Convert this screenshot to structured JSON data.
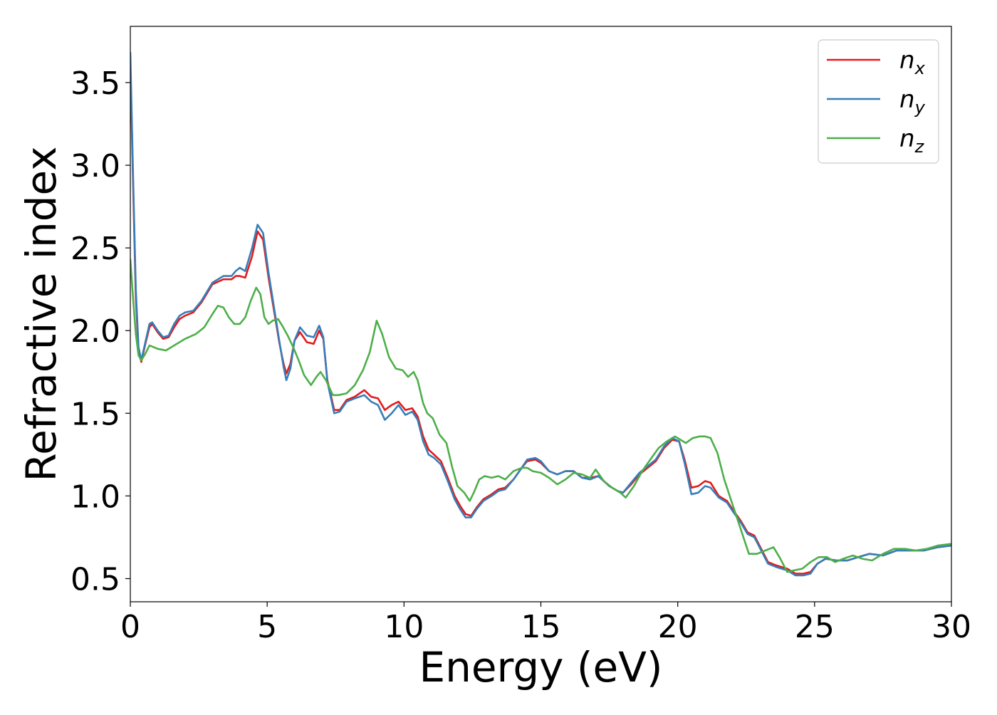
{
  "chart_data": {
    "type": "line",
    "xlabel": "Energy (eV)",
    "ylabel": "Refractive index",
    "xlim": [
      0,
      30
    ],
    "ylim": [
      0.36,
      3.84
    ],
    "xticks": [
      0,
      5,
      10,
      15,
      20,
      25,
      30
    ],
    "yticks": [
      0.5,
      1.0,
      1.5,
      2.0,
      2.5,
      3.0,
      3.5
    ],
    "xtick_labels": [
      "0",
      "5",
      "10",
      "15",
      "20",
      "25",
      "30"
    ],
    "ytick_labels": [
      "0.5",
      "1.0",
      "1.5",
      "2.0",
      "2.5",
      "3.0",
      "3.5"
    ],
    "grid": false,
    "legend_position": "top-right",
    "series": [
      {
        "name": "n",
        "subscript": "x",
        "color": "#e41a1c",
        "x": [
          0,
          0.1,
          0.2,
          0.3,
          0.4,
          0.55,
          0.7,
          0.8,
          1.0,
          1.2,
          1.4,
          1.6,
          1.8,
          2.0,
          2.3,
          2.6,
          3.0,
          3.4,
          3.7,
          3.85,
          4.0,
          4.2,
          4.45,
          4.65,
          4.85,
          5.05,
          5.25,
          5.45,
          5.6,
          5.7,
          5.85,
          6.0,
          6.2,
          6.45,
          6.7,
          6.9,
          7.05,
          7.2,
          7.45,
          7.65,
          7.9,
          8.2,
          8.55,
          8.8,
          9.05,
          9.3,
          9.55,
          9.8,
          10.05,
          10.3,
          10.5,
          10.7,
          10.9,
          11.1,
          11.35,
          11.6,
          11.85,
          12.05,
          12.25,
          12.45,
          12.65,
          12.9,
          13.2,
          13.45,
          13.7,
          14.0,
          14.3,
          14.5,
          14.8,
          15.0,
          15.3,
          15.6,
          15.9,
          16.2,
          16.5,
          16.8,
          17.1,
          17.5,
          17.8,
          18.0,
          18.3,
          18.6,
          18.9,
          19.2,
          19.5,
          19.8,
          20.05,
          20.25,
          20.5,
          20.75,
          21.0,
          21.2,
          21.5,
          21.8,
          22.0,
          22.3,
          22.55,
          22.8,
          23.05,
          23.3,
          23.6,
          24.0,
          24.3,
          24.6,
          24.85,
          25.1,
          25.4,
          25.8,
          26.2,
          26.6,
          27.0,
          27.5,
          28.0,
          28.5,
          29.0,
          29.5,
          30.0
        ],
        "y": [
          3.62,
          2.9,
          2.2,
          1.88,
          1.81,
          1.92,
          2.02,
          2.04,
          1.99,
          1.95,
          1.96,
          2.02,
          2.07,
          2.09,
          2.11,
          2.17,
          2.28,
          2.31,
          2.31,
          2.33,
          2.33,
          2.32,
          2.45,
          2.6,
          2.55,
          2.32,
          2.12,
          1.92,
          1.8,
          1.74,
          1.8,
          1.94,
          1.99,
          1.93,
          1.92,
          2.0,
          1.95,
          1.7,
          1.52,
          1.52,
          1.58,
          1.6,
          1.64,
          1.6,
          1.59,
          1.52,
          1.55,
          1.57,
          1.52,
          1.53,
          1.48,
          1.36,
          1.28,
          1.25,
          1.21,
          1.11,
          1.0,
          0.94,
          0.89,
          0.88,
          0.93,
          0.98,
          1.01,
          1.04,
          1.05,
          1.1,
          1.17,
          1.21,
          1.22,
          1.2,
          1.15,
          1.13,
          1.15,
          1.15,
          1.11,
          1.11,
          1.12,
          1.06,
          1.03,
          1.02,
          1.07,
          1.13,
          1.17,
          1.21,
          1.29,
          1.34,
          1.33,
          1.22,
          1.05,
          1.06,
          1.09,
          1.08,
          1.0,
          0.97,
          0.92,
          0.85,
          0.78,
          0.76,
          0.68,
          0.6,
          0.58,
          0.56,
          0.53,
          0.53,
          0.54,
          0.59,
          0.62,
          0.61,
          0.61,
          0.63,
          0.65,
          0.64,
          0.67,
          0.67,
          0.67,
          0.69,
          0.7
        ]
      },
      {
        "name": "n",
        "subscript": "y",
        "color": "#377eb8",
        "x": [
          0,
          0.1,
          0.2,
          0.3,
          0.4,
          0.55,
          0.7,
          0.8,
          1.0,
          1.2,
          1.4,
          1.6,
          1.8,
          2.0,
          2.3,
          2.6,
          3.0,
          3.4,
          3.7,
          3.85,
          4.0,
          4.2,
          4.45,
          4.65,
          4.85,
          5.05,
          5.25,
          5.45,
          5.6,
          5.7,
          5.85,
          6.0,
          6.2,
          6.45,
          6.7,
          6.9,
          7.05,
          7.2,
          7.45,
          7.65,
          7.9,
          8.2,
          8.55,
          8.8,
          9.05,
          9.3,
          9.55,
          9.8,
          10.05,
          10.3,
          10.5,
          10.7,
          10.9,
          11.1,
          11.35,
          11.6,
          11.85,
          12.05,
          12.25,
          12.45,
          12.65,
          12.9,
          13.2,
          13.45,
          13.7,
          14.0,
          14.3,
          14.5,
          14.8,
          15.0,
          15.3,
          15.6,
          15.9,
          16.2,
          16.5,
          16.8,
          17.1,
          17.5,
          17.8,
          18.0,
          18.3,
          18.6,
          18.9,
          19.2,
          19.5,
          19.8,
          20.05,
          20.25,
          20.5,
          20.75,
          21.0,
          21.2,
          21.5,
          21.8,
          22.0,
          22.3,
          22.55,
          22.8,
          23.05,
          23.3,
          23.6,
          24.0,
          24.3,
          24.6,
          24.85,
          25.1,
          25.4,
          25.8,
          26.2,
          26.6,
          27.0,
          27.5,
          28.0,
          28.5,
          29.0,
          29.5,
          30.0
        ],
        "y": [
          3.68,
          2.95,
          2.25,
          1.9,
          1.82,
          1.93,
          2.04,
          2.05,
          2.0,
          1.96,
          1.97,
          2.04,
          2.09,
          2.11,
          2.12,
          2.18,
          2.29,
          2.33,
          2.33,
          2.36,
          2.38,
          2.36,
          2.5,
          2.64,
          2.59,
          2.35,
          2.14,
          1.93,
          1.78,
          1.7,
          1.77,
          1.94,
          2.02,
          1.97,
          1.96,
          2.03,
          1.96,
          1.69,
          1.5,
          1.51,
          1.57,
          1.59,
          1.61,
          1.57,
          1.55,
          1.46,
          1.5,
          1.55,
          1.49,
          1.51,
          1.46,
          1.33,
          1.25,
          1.23,
          1.19,
          1.09,
          0.98,
          0.92,
          0.87,
          0.87,
          0.92,
          0.97,
          1.0,
          1.03,
          1.04,
          1.1,
          1.17,
          1.22,
          1.23,
          1.21,
          1.15,
          1.13,
          1.15,
          1.15,
          1.11,
          1.1,
          1.12,
          1.06,
          1.03,
          1.02,
          1.08,
          1.14,
          1.18,
          1.22,
          1.3,
          1.35,
          1.33,
          1.2,
          1.01,
          1.02,
          1.06,
          1.05,
          0.99,
          0.96,
          0.91,
          0.84,
          0.77,
          0.75,
          0.67,
          0.59,
          0.57,
          0.55,
          0.52,
          0.52,
          0.53,
          0.59,
          0.62,
          0.61,
          0.61,
          0.63,
          0.65,
          0.64,
          0.67,
          0.67,
          0.67,
          0.69,
          0.7
        ]
      },
      {
        "name": "n",
        "subscript": "z",
        "color": "#4daf4a",
        "x": [
          0,
          0.1,
          0.2,
          0.3,
          0.4,
          0.55,
          0.7,
          0.85,
          1.0,
          1.3,
          1.6,
          2.0,
          2.4,
          2.7,
          3.0,
          3.2,
          3.4,
          3.6,
          3.8,
          4.0,
          4.2,
          4.4,
          4.6,
          4.75,
          4.9,
          5.05,
          5.2,
          5.4,
          5.55,
          5.75,
          5.95,
          6.15,
          6.35,
          6.6,
          6.8,
          6.95,
          7.15,
          7.4,
          7.6,
          7.9,
          8.2,
          8.5,
          8.75,
          9.0,
          9.2,
          9.45,
          9.7,
          9.95,
          10.15,
          10.35,
          10.5,
          10.7,
          10.85,
          11.05,
          11.3,
          11.55,
          11.75,
          11.95,
          12.2,
          12.4,
          12.55,
          12.75,
          12.95,
          13.2,
          13.45,
          13.7,
          14.0,
          14.3,
          14.5,
          14.7,
          15.0,
          15.3,
          15.6,
          15.9,
          16.2,
          16.5,
          16.8,
          17.0,
          17.3,
          17.6,
          17.9,
          18.1,
          18.4,
          18.7,
          19.0,
          19.3,
          19.6,
          19.9,
          20.1,
          20.3,
          20.55,
          20.8,
          21.0,
          21.2,
          21.45,
          21.7,
          22.0,
          22.3,
          22.6,
          22.9,
          23.2,
          23.5,
          23.75,
          24.0,
          24.25,
          24.55,
          24.85,
          25.15,
          25.45,
          25.75,
          26.05,
          26.4,
          26.75,
          27.1,
          27.5,
          27.9,
          28.3,
          28.7,
          29.1,
          29.5,
          30.0
        ],
        "y": [
          2.43,
          2.2,
          1.98,
          1.85,
          1.82,
          1.86,
          1.91,
          1.9,
          1.89,
          1.88,
          1.91,
          1.95,
          1.98,
          2.02,
          2.1,
          2.15,
          2.14,
          2.08,
          2.04,
          2.04,
          2.08,
          2.18,
          2.26,
          2.22,
          2.08,
          2.04,
          2.06,
          2.07,
          2.03,
          1.97,
          1.9,
          1.82,
          1.73,
          1.67,
          1.72,
          1.75,
          1.7,
          1.61,
          1.61,
          1.62,
          1.67,
          1.76,
          1.87,
          2.06,
          1.98,
          1.84,
          1.77,
          1.76,
          1.72,
          1.75,
          1.7,
          1.56,
          1.5,
          1.47,
          1.37,
          1.32,
          1.18,
          1.06,
          1.02,
          0.97,
          1.02,
          1.1,
          1.12,
          1.11,
          1.12,
          1.1,
          1.15,
          1.17,
          1.17,
          1.15,
          1.14,
          1.11,
          1.07,
          1.1,
          1.14,
          1.13,
          1.11,
          1.16,
          1.09,
          1.05,
          1.02,
          0.99,
          1.06,
          1.15,
          1.22,
          1.29,
          1.33,
          1.36,
          1.34,
          1.32,
          1.35,
          1.36,
          1.36,
          1.35,
          1.26,
          1.1,
          0.95,
          0.8,
          0.65,
          0.65,
          0.67,
          0.69,
          0.62,
          0.54,
          0.55,
          0.56,
          0.6,
          0.63,
          0.63,
          0.6,
          0.62,
          0.64,
          0.62,
          0.61,
          0.65,
          0.68,
          0.68,
          0.67,
          0.68,
          0.7,
          0.71
        ]
      }
    ]
  }
}
